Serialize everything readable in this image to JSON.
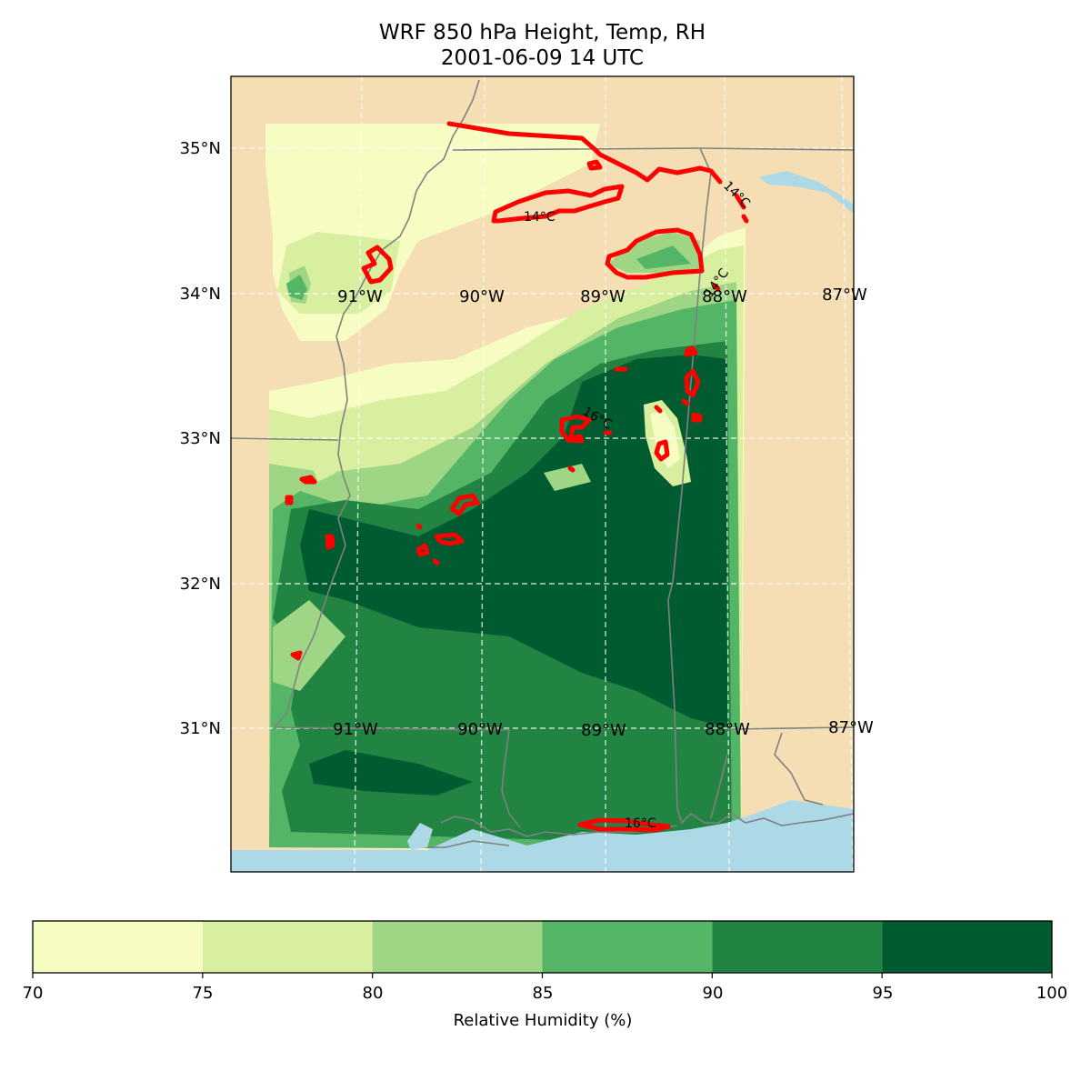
{
  "title": {
    "line1": "WRF 850 hPa Height, Temp, RH",
    "line2": "2001-06-09 14 UTC"
  },
  "map": {
    "background_land": "#f5deb3",
    "water_color": "#add8e6",
    "border_color": "#808080",
    "grid_color": "#ffffff",
    "contour_color": "#ff0000",
    "lat_labels": [
      "35°N",
      "34°N",
      "33°N",
      "32°N",
      "31°N"
    ],
    "lon_labels_upper": [
      "91°W",
      "90°W",
      "89°W",
      "88°W",
      "87°W"
    ],
    "lon_labels_lower": [
      "91°W",
      "90°W",
      "89°W",
      "88°W",
      "87°W"
    ],
    "temp_labels": [
      "14°C",
      "14°C",
      "14°C",
      "16°C",
      "16°C"
    ]
  },
  "colorbar": {
    "label": "Relative Humidity (%)",
    "ticks": [
      "70",
      "75",
      "80",
      "85",
      "90",
      "95",
      "100"
    ],
    "levels": [
      70,
      75,
      80,
      85,
      90,
      95,
      100
    ],
    "colors": [
      "#f7fcc2",
      "#d9efa0",
      "#9fd686",
      "#55b567",
      "#228443",
      "#005c30"
    ]
  }
}
